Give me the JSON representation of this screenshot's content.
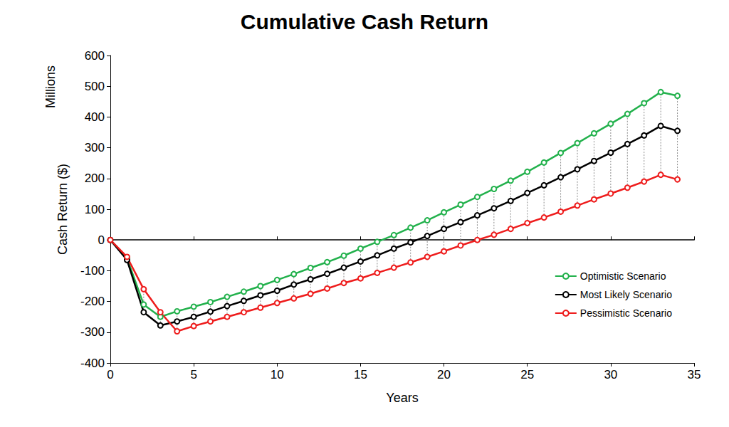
{
  "chart_data": {
    "type": "line",
    "title": "Cumulative Cash Return",
    "xlabel": "Years",
    "ylabel": "Cash Return ($)",
    "annotations": [
      "Millions"
    ],
    "x": [
      0,
      1,
      2,
      3,
      4,
      5,
      6,
      7,
      8,
      9,
      10,
      11,
      12,
      13,
      14,
      15,
      16,
      17,
      18,
      19,
      20,
      21,
      22,
      23,
      24,
      25,
      26,
      27,
      28,
      29,
      30,
      31,
      32,
      33,
      34
    ],
    "series": [
      {
        "name": "Optimistic Scenario",
        "color": "#22b14c",
        "marker": "circle",
        "line_style": "solid",
        "values": [
          0,
          -60,
          -210,
          -250,
          -232,
          -217,
          -202,
          -185,
          -168,
          -150,
          -130,
          -111,
          -91,
          -72,
          -51,
          -28,
          -6,
          16,
          40,
          64,
          90,
          115,
          140,
          166,
          193,
          222,
          252,
          283,
          315,
          347,
          378,
          410,
          445,
          481,
          469
        ]
      },
      {
        "name": "Most Likely Scenario",
        "color": "#000000",
        "marker": "circle",
        "line_style": "solid",
        "values": [
          0,
          -65,
          -235,
          -278,
          -265,
          -250,
          -233,
          -215,
          -198,
          -180,
          -165,
          -145,
          -128,
          -110,
          -90,
          -70,
          -50,
          -28,
          -8,
          13,
          36,
          58,
          80,
          103,
          127,
          153,
          178,
          204,
          230,
          257,
          284,
          312,
          340,
          371,
          355
        ]
      },
      {
        "name": "Pessimistic Scenario",
        "color": "#ee1c1c",
        "marker": "circle",
        "line_style": "solid",
        "values": [
          0,
          -55,
          -160,
          -235,
          -297,
          -280,
          -265,
          -250,
          -235,
          -220,
          -205,
          -190,
          -175,
          -158,
          -140,
          -125,
          -107,
          -90,
          -73,
          -55,
          -37,
          -18,
          0,
          17,
          36,
          55,
          73,
          92,
          112,
          132,
          151,
          170,
          190,
          212,
          197
        ]
      }
    ],
    "xlim": [
      0,
      35
    ],
    "xticks": [
      0,
      5,
      10,
      15,
      20,
      25,
      30,
      35
    ],
    "ylim": [
      -400,
      600
    ],
    "yticks": [
      -400,
      -300,
      -200,
      -100,
      0,
      100,
      200,
      300,
      400,
      500,
      600
    ],
    "grid": false,
    "legend": "lower right"
  }
}
